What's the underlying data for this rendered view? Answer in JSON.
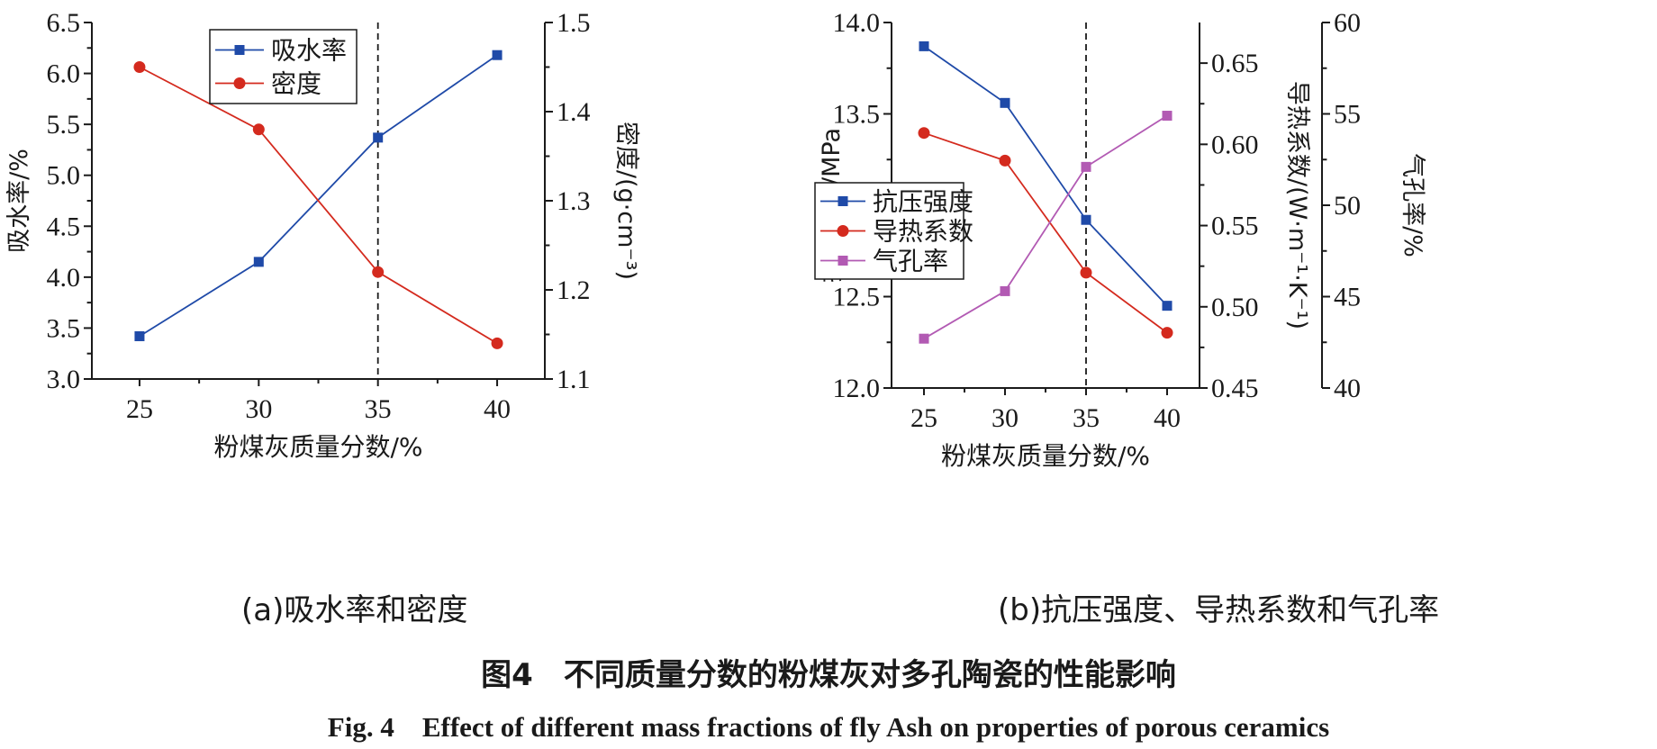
{
  "chart_data": [
    {
      "type": "line",
      "x": [
        25,
        30,
        35,
        40
      ],
      "xlabel": "粉煤灰质量分数/%",
      "xlim": [
        23,
        42
      ],
      "xticks": [
        25,
        30,
        35,
        40
      ],
      "vline_x": 35,
      "axes": {
        "left": {
          "label": "吸水率/%",
          "ylim": [
            3.0,
            6.5
          ],
          "ticks": [
            "3.0",
            "3.5",
            "4.0",
            "4.5",
            "5.0",
            "5.5",
            "6.0",
            "6.5"
          ]
        },
        "right": {
          "label": "密度/(g·cm⁻³)",
          "ylim": [
            1.1,
            1.5
          ],
          "ticks": [
            "1.1",
            "1.2",
            "1.3",
            "1.4",
            "1.5"
          ]
        }
      },
      "series": [
        {
          "name": "吸水率",
          "axis": "left",
          "marker": "square",
          "color": "#1f4aa8",
          "values": [
            3.42,
            4.15,
            5.37,
            6.18
          ]
        },
        {
          "name": "密度",
          "axis": "right",
          "marker": "circle",
          "color": "#d42a1e",
          "values": [
            1.45,
            1.38,
            1.22,
            1.14
          ]
        }
      ],
      "legend": "top-center",
      "grid": false
    },
    {
      "type": "line",
      "x": [
        25,
        30,
        35,
        40
      ],
      "xlabel": "粉煤灰质量分数/%",
      "xlim": [
        23,
        42
      ],
      "xticks": [
        25,
        30,
        35,
        40
      ],
      "vline_x": 35,
      "axes": {
        "left": {
          "label": "抗压强度/MPa",
          "ylim": [
            12.0,
            14.0
          ],
          "ticks": [
            "12.0",
            "12.5",
            "13.0",
            "13.5",
            "14.0"
          ]
        },
        "right": {
          "label": "导热系数/(W·m⁻¹·K⁻¹)",
          "ylim": [
            0.45,
            0.675
          ],
          "ticks": [
            "0.45",
            "0.50",
            "0.55",
            "0.60",
            "0.65"
          ]
        },
        "right2": {
          "label": "气孔率/%",
          "ylim": [
            40,
            60
          ],
          "ticks": [
            "40",
            "45",
            "50",
            "55",
            "60"
          ]
        }
      },
      "series": [
        {
          "name": "抗压强度",
          "axis": "left",
          "marker": "square",
          "color": "#1f4aa8",
          "values": [
            13.87,
            13.56,
            12.92,
            12.45
          ]
        },
        {
          "name": "导热系数",
          "axis": "right",
          "marker": "circle",
          "color": "#d42a1e",
          "values": [
            0.607,
            0.59,
            0.521,
            0.484
          ]
        },
        {
          "name": "气孔率",
          "axis": "right2",
          "marker": "square",
          "color": "#b25ab3",
          "values": [
            42.7,
            45.3,
            52.1,
            54.9
          ]
        }
      ],
      "legend": "center-left",
      "grid": false
    }
  ],
  "captions": {
    "sub_a": "(a)吸水率和密度",
    "sub_b": "(b)抗压强度、导热系数和气孔率",
    "figure_cn": "图4　不同质量分数的粉煤灰对多孔陶瓷的性能影响",
    "figure_en": "Fig. 4　Effect of different mass fractions of fly Ash on properties of porous ceramics"
  }
}
